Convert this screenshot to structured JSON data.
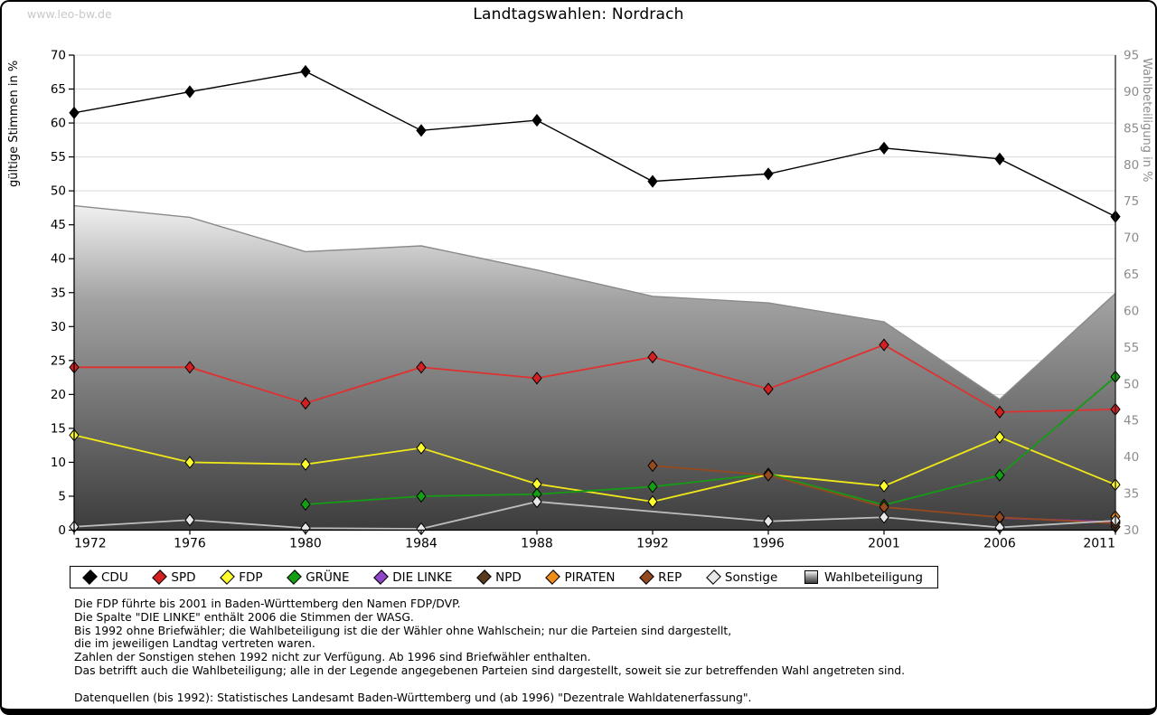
{
  "watermark": "www.leo-bw.de",
  "title": "Landtagswahlen: Nordrach",
  "chart_data": {
    "type": "line",
    "title": "Landtagswahlen: Nordrach",
    "x_categories": [
      "1972",
      "1976",
      "1980",
      "1984",
      "1988",
      "1992",
      "1996",
      "2001",
      "2006",
      "2011"
    ],
    "y_left": {
      "label": "gültige Stimmen in %",
      "min": 0,
      "max": 70,
      "tick_step": 5,
      "tick_labels": [
        "0",
        "5",
        "10",
        "15",
        "20",
        "25",
        "30",
        "35",
        "40",
        "45",
        "50",
        "55",
        "60",
        "65",
        "70"
      ]
    },
    "y_right": {
      "label": "Wahlbeteiligung in %",
      "min": 30,
      "max": 95,
      "tick_step": 5,
      "minor_step": 1,
      "tick_labels": [
        "30",
        "35",
        "40",
        "45",
        "50",
        "55",
        "60",
        "65",
        "70",
        "75",
        "80",
        "85",
        "90",
        "95"
      ]
    },
    "grid": true,
    "legend_position": "bottom",
    "series": [
      {
        "name": "CDU",
        "type": "line",
        "axis": "left",
        "color": "#000000",
        "marker_color": "#000000",
        "values": [
          61.5,
          64.6,
          67.6,
          58.9,
          60.4,
          51.4,
          52.5,
          56.3,
          54.7,
          46.2
        ]
      },
      {
        "name": "SPD",
        "type": "line",
        "axis": "left",
        "color": "#e03030",
        "marker_color": "#d42020",
        "values": [
          24.0,
          24.0,
          18.7,
          24.0,
          22.4,
          25.5,
          20.8,
          27.3,
          17.4,
          17.8
        ]
      },
      {
        "name": "FDP",
        "type": "line",
        "axis": "left",
        "color": "#f0e818",
        "marker_color": "#ffff2e",
        "values": [
          14.0,
          10.0,
          9.7,
          12.1,
          6.8,
          4.2,
          8.2,
          6.5,
          13.7,
          6.7
        ]
      },
      {
        "name": "GRÜNE",
        "type": "line",
        "axis": "left",
        "color": "#159b15",
        "marker_color": "#12a012",
        "values": [
          null,
          null,
          3.8,
          5.0,
          5.3,
          6.4,
          8.3,
          3.7,
          8.1,
          22.6
        ]
      },
      {
        "name": "DIE LINKE",
        "type": "line",
        "axis": "left",
        "color": "#a03aa0",
        "marker_color": "#8f46c8",
        "values": [
          null,
          null,
          null,
          null,
          null,
          null,
          null,
          null,
          1.8,
          1.2
        ]
      },
      {
        "name": "NPD",
        "type": "line",
        "axis": "left",
        "color": "#5a3a1e",
        "marker_color": "#5a3a1e",
        "values": [
          null,
          null,
          null,
          null,
          null,
          null,
          null,
          null,
          null,
          0.5
        ]
      },
      {
        "name": "PIRATEN",
        "type": "line",
        "axis": "left",
        "color": "#ef8d18",
        "marker_color": "#ef8d18",
        "values": [
          null,
          null,
          null,
          null,
          null,
          null,
          null,
          null,
          null,
          2.0
        ]
      },
      {
        "name": "REP",
        "type": "line",
        "axis": "left",
        "color": "#95491e",
        "marker_color": "#95491e",
        "values": [
          null,
          null,
          null,
          null,
          null,
          9.5,
          8.1,
          3.4,
          1.9,
          1.0
        ]
      },
      {
        "name": "Sonstige",
        "type": "line",
        "axis": "left",
        "color": "#bdbdbd",
        "marker_color": "#e8e8e8",
        "values": [
          0.5,
          1.5,
          0.3,
          0.2,
          4.2,
          null,
          1.3,
          1.9,
          0.4,
          1.4
        ]
      },
      {
        "name": "Wahlbeteiligung",
        "type": "area",
        "axis": "right",
        "outline": "#8a8a8a",
        "gradient": {
          "top": "#f8f8f8",
          "mid": "#a2a2a2",
          "bottom": "#3c3c3c"
        },
        "values": [
          74.4,
          72.8,
          68.1,
          68.9,
          65.6,
          62.0,
          61.1,
          58.5,
          47.9,
          62.4
        ]
      }
    ]
  },
  "footnotes": [
    "Die FDP führte bis 2001 in Baden-Württemberg den Namen FDP/DVP.",
    "Die Spalte \"DIE LINKE\" enthält 2006 die Stimmen der WASG.",
    "Bis 1992 ohne Briefwähler; die Wahlbeteiligung ist die der Wähler ohne Wahlschein; nur die Parteien sind dargestellt,",
    "die im jeweiligen Landtag vertreten waren.",
    "Zahlen der Sonstigen stehen 1992 nicht zur Verfügung. Ab 1996 sind Briefwähler enthalten.",
    "Das betrifft auch die Wahlbeteiligung; alle in der Legende angegebenen Parteien sind dargestellt, soweit sie zur betreffenden Wahl angetreten sind.",
    "",
    "Datenquellen (bis 1992): Statistisches Landesamt Baden-Württemberg und (ab 1996) \"Dezentrale Wahldatenerfassung\"."
  ]
}
